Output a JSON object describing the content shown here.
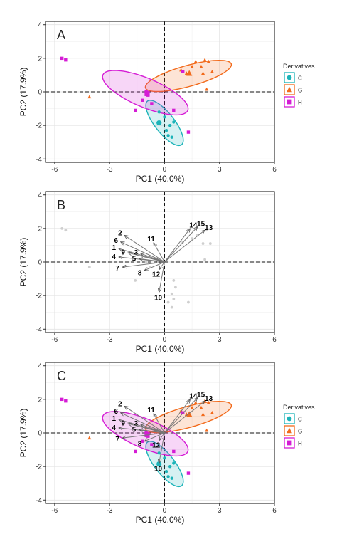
{
  "axes": {
    "xlabel": "PC1 (40.0%)",
    "ylabel": "PC2 (17.9%)",
    "xlim": [
      -6.5,
      6.0
    ],
    "ylim": [
      -4.2,
      4.2
    ],
    "xticks": [
      -6,
      -3,
      0,
      3,
      6
    ],
    "yticks": [
      -4,
      -2,
      0,
      2,
      4
    ],
    "xtick_labels": [
      "-6",
      "-3",
      "0",
      "3",
      "6"
    ],
    "ytick_labels": [
      "-4",
      "-2",
      "0",
      "2",
      "4"
    ]
  },
  "legend": {
    "title": "Derivatives",
    "placement": "right",
    "entries": [
      {
        "key": "C",
        "label": "C",
        "color": "#1bb3b8",
        "shape": "circle"
      },
      {
        "key": "G",
        "label": "G",
        "color": "#f26a1b",
        "shape": "triangle"
      },
      {
        "key": "H",
        "label": "H",
        "color": "#d51cd5",
        "shape": "square"
      }
    ]
  },
  "chart_data": [
    {
      "type": "scatter",
      "panel_label": "A",
      "shows_legend": true,
      "groups": {
        "C": {
          "points": [
            [
              -0.3,
              -1.2
            ],
            [
              0.0,
              -1.5
            ],
            [
              0.3,
              -2.0
            ],
            [
              0.4,
              -2.7
            ],
            [
              0.5,
              -1.8
            ],
            [
              0.1,
              -2.3
            ],
            [
              0.2,
              -2.6
            ]
          ],
          "centroid": [
            -0.3,
            -1.85
          ],
          "ellipse": {
            "center": [
              0.0,
              -1.85
            ],
            "semi_major": 1.6,
            "semi_minor": 0.55,
            "angle_deg": -55
          }
        },
        "G": {
          "points": [
            [
              0.9,
              1.3
            ],
            [
              1.2,
              1.1
            ],
            [
              1.5,
              1.5
            ],
            [
              1.7,
              1.8
            ],
            [
              2.0,
              1.5
            ],
            [
              2.1,
              1.1
            ],
            [
              2.2,
              1.9
            ],
            [
              2.4,
              1.8
            ],
            [
              2.6,
              1.2
            ],
            [
              2.3,
              0.15
            ],
            [
              -4.1,
              -0.3
            ]
          ],
          "centroid": [
            1.35,
            1.1
          ],
          "ellipse": {
            "center": [
              1.3,
              0.95
            ],
            "semi_major": 2.45,
            "semi_minor": 0.62,
            "angle_deg": 17
          }
        },
        "H": {
          "points": [
            [
              -5.6,
              2.0
            ],
            [
              -5.4,
              1.9
            ],
            [
              -1.0,
              0.0
            ],
            [
              -0.9,
              -0.2
            ],
            [
              -1.2,
              -0.5
            ],
            [
              -0.7,
              -0.7
            ],
            [
              -1.6,
              -1.1
            ],
            [
              0.5,
              -1.1
            ],
            [
              1.0,
              1.2
            ],
            [
              1.3,
              -2.4
            ]
          ],
          "centroid": [
            -0.95,
            -0.1
          ],
          "ellipse": {
            "center": [
              -1.05,
              -0.05
            ],
            "semi_major": 2.55,
            "semi_minor": 0.85,
            "angle_deg": -25
          }
        }
      }
    },
    {
      "type": "biplot",
      "panel_label": "B",
      "shows_legend": false,
      "background_points": [
        [
          -5.6,
          2.0
        ],
        [
          -5.4,
          1.9
        ],
        [
          -4.1,
          -0.3
        ],
        [
          -1.6,
          -1.1
        ],
        [
          -1.0,
          0.0
        ],
        [
          -0.8,
          -0.3
        ],
        [
          -0.6,
          -0.7
        ],
        [
          0.5,
          -1.1
        ],
        [
          0.6,
          -1.5
        ],
        [
          0.4,
          -1.9
        ],
        [
          0.5,
          -2.2
        ],
        [
          0.4,
          -2.7
        ],
        [
          0.2,
          -2.4
        ],
        [
          1.3,
          -2.4
        ],
        [
          1.0,
          1.2
        ],
        [
          1.5,
          1.4
        ],
        [
          1.8,
          1.6
        ],
        [
          2.1,
          1.1
        ],
        [
          2.3,
          1.9
        ],
        [
          2.5,
          1.1
        ],
        [
          2.2,
          0.15
        ]
      ],
      "loadings": [
        {
          "label": "1",
          "x": -2.5,
          "y": 0.8
        },
        {
          "label": "2",
          "x": -2.2,
          "y": 1.6
        },
        {
          "label": "3",
          "x": -1.3,
          "y": 0.5
        },
        {
          "label": "4",
          "x": -2.5,
          "y": 0.3
        },
        {
          "label": "5",
          "x": -1.4,
          "y": 0.2
        },
        {
          "label": "6",
          "x": -2.4,
          "y": 1.2
        },
        {
          "label": "7",
          "x": -2.3,
          "y": -0.3
        },
        {
          "label": "8",
          "x": -1.1,
          "y": -0.5
        },
        {
          "label": "9",
          "x": -2.0,
          "y": 0.55
        },
        {
          "label": "10",
          "x": -0.3,
          "y": -1.8
        },
        {
          "label": "11",
          "x": -0.6,
          "y": 1.15
        },
        {
          "label": "12",
          "x": -0.3,
          "y": -0.45
        },
        {
          "label": "13",
          "x": 2.2,
          "y": 1.9
        },
        {
          "label": "14",
          "x": 1.4,
          "y": 2.0
        },
        {
          "label": "15",
          "x": 1.8,
          "y": 2.1
        }
      ]
    },
    {
      "type": "biplot",
      "panel_label": "C",
      "shows_legend": true,
      "overlay_of": [
        "A",
        "B"
      ]
    }
  ]
}
